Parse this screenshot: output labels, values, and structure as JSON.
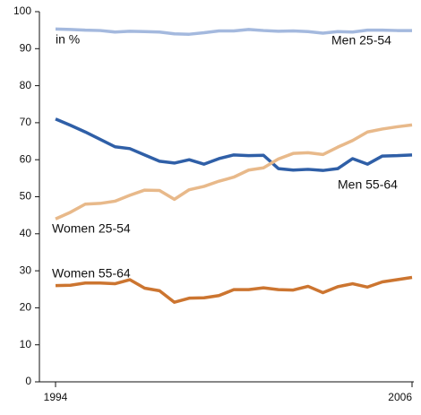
{
  "chart_data": {
    "type": "line",
    "y_label": "in %",
    "x": [
      1994,
      1994.5,
      1995,
      1995.5,
      1996,
      1996.5,
      1997,
      1997.5,
      1998,
      1998.5,
      1999,
      1999.5,
      2000,
      2000.5,
      2001,
      2001.5,
      2002,
      2002.5,
      2003,
      2003.5,
      2004,
      2004.5,
      2005,
      2005.5,
      2006
    ],
    "series": [
      {
        "name": "Men 25-54",
        "color": "#a4b9de",
        "values": [
          95.3,
          95.2,
          95,
          94.9,
          94.5,
          94.7,
          94.6,
          94.5,
          94,
          93.9,
          94.3,
          94.8,
          94.8,
          95.2,
          94.9,
          94.7,
          94.8,
          94.6,
          94.2,
          94.6,
          94.5,
          95,
          95,
          94.9,
          94.9
        ]
      },
      {
        "name": "Men 55-64",
        "color": "#2f5fa7",
        "values": [
          71,
          69.3,
          67.5,
          65.5,
          63.5,
          63,
          61.3,
          59.6,
          59.1,
          60,
          58.8,
          60.3,
          61.3,
          61.1,
          61.2,
          57.6,
          57.2,
          57.4,
          57.1,
          57.6,
          60.3,
          58.8,
          61,
          61.1,
          61.3
        ]
      },
      {
        "name": "Women 25-54",
        "color": "#e8b98a",
        "values": [
          44,
          45.8,
          48,
          48.2,
          48.8,
          50.4,
          51.8,
          51.7,
          49.3,
          51.9,
          52.8,
          54.2,
          55.3,
          57.2,
          57.8,
          60.2,
          61.7,
          61.9,
          61.4,
          63.4,
          65.2,
          67.5,
          68.3,
          68.9,
          69.4
        ]
      },
      {
        "name": "Women 55-64",
        "color": "#cc7530",
        "values": [
          26,
          26.1,
          26.7,
          26.7,
          26.5,
          27.6,
          25.3,
          24.6,
          21.5,
          22.6,
          22.7,
          23.3,
          24.9,
          24.9,
          25.4,
          24.9,
          24.8,
          25.8,
          24.1,
          25.7,
          26.5,
          25.6,
          27,
          27.6,
          28.2
        ]
      }
    ],
    "xlim": [
      1994,
      2006
    ],
    "xticks": [
      1994,
      2006
    ],
    "ylim": [
      0,
      100
    ],
    "yticks": [
      0,
      10,
      20,
      30,
      40,
      50,
      60,
      70,
      80,
      90,
      100
    ]
  }
}
